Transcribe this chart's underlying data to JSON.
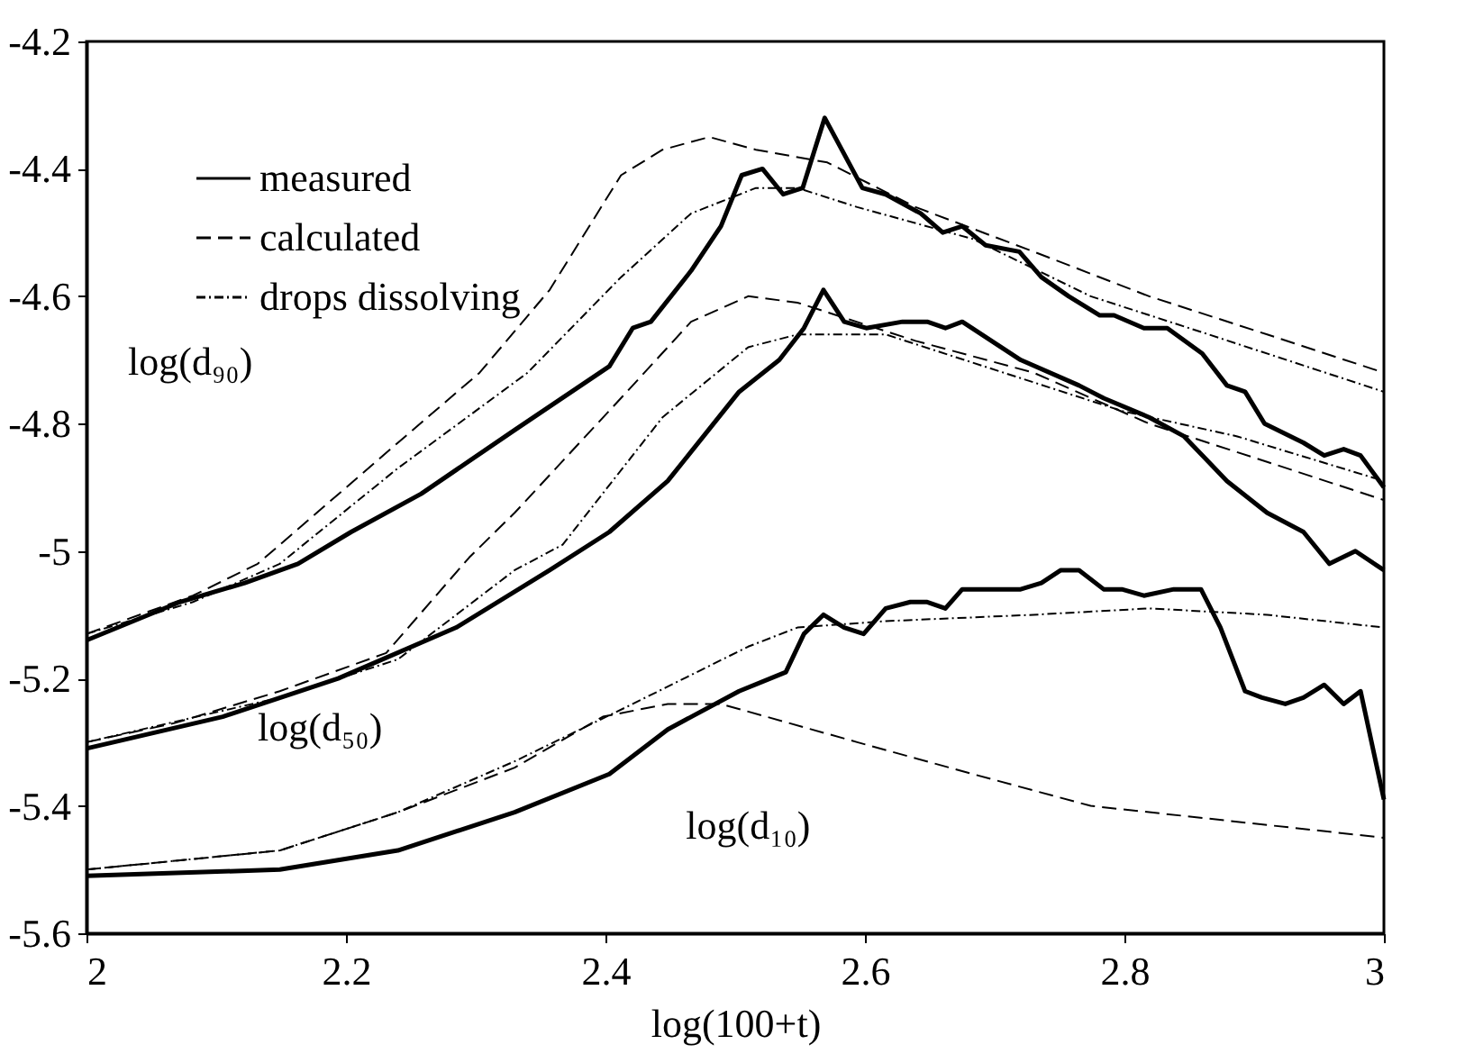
{
  "chart_data": {
    "type": "line",
    "xlabel": "log(100+t)",
    "xlim": [
      2,
      3
    ],
    "ylim": [
      -5.6,
      -4.2
    ],
    "xticks": [
      2,
      2.2,
      2.4,
      2.6,
      2.8,
      3
    ],
    "yticks": [
      -5.6,
      -5.4,
      -5.2,
      -5,
      -4.8,
      -4.6,
      -4.4,
      -4.2
    ],
    "grid": false,
    "legend": "top left",
    "marker": "none",
    "annotations": [
      "log(d₉₀)",
      "log(d₅₀)",
      "log(d₁₀)"
    ],
    "series": [
      {
        "name": "measured",
        "color": "#000000",
        "line_style": "solid",
        "x": [
          2,
          2.072,
          2.122,
          2.163,
          2.204,
          2.258,
          2.33,
          2.403,
          2.421,
          2.435,
          2.466,
          2.489,
          2.505,
          2.521,
          2.537,
          2.552,
          2.569,
          2.598,
          2.616,
          2.643,
          2.66,
          2.675,
          2.693,
          2.719,
          2.736,
          2.757,
          2.781,
          2.792,
          2.815,
          2.833,
          2.86,
          2.879,
          2.893,
          2.908,
          2.938,
          2.954,
          2.969,
          2.982,
          3
        ],
        "values": [
          -5.14,
          -5.08,
          -5.05,
          -5.02,
          -4.97,
          -4.91,
          -4.81,
          -4.71,
          -4.65,
          -4.64,
          -4.56,
          -4.49,
          -4.41,
          -4.4,
          -4.44,
          -4.43,
          -4.32,
          -4.43,
          -4.44,
          -4.47,
          -4.5,
          -4.49,
          -4.52,
          -4.53,
          -4.57,
          -4.6,
          -4.63,
          -4.63,
          -4.65,
          -4.65,
          -4.69,
          -4.74,
          -4.75,
          -4.8,
          -4.83,
          -4.85,
          -4.84,
          -4.85,
          -4.9
        ]
      },
      {
        "name": "calculated",
        "color": "#000000",
        "line_style": "dashed",
        "x": [
          2,
          2.082,
          2.132,
          2.24,
          2.303,
          2.357,
          2.412,
          2.444,
          2.48,
          2.516,
          2.571,
          2.639,
          2.73,
          2.819,
          2.91,
          3
        ],
        "values": [
          -5.13,
          -5.07,
          -5.02,
          -4.83,
          -4.72,
          -4.59,
          -4.41,
          -4.37,
          -4.35,
          -4.37,
          -4.39,
          -4.46,
          -4.53,
          -4.6,
          -4.66,
          -4.72
        ]
      },
      {
        "name": "drops dissolving",
        "color": "#000000",
        "line_style": "dotted",
        "x": [
          2,
          2.082,
          2.149,
          2.24,
          2.34,
          2.412,
          2.466,
          2.516,
          2.548,
          2.594,
          2.683,
          2.774,
          2.865,
          3
        ],
        "values": [
          -5.13,
          -5.08,
          -5.02,
          -4.87,
          -4.72,
          -4.57,
          -4.47,
          -4.43,
          -4.43,
          -4.46,
          -4.51,
          -4.6,
          -4.66,
          -4.75
        ]
      },
      {
        "color": "#000000",
        "line_style": "solid",
        "x": [
          2,
          2.105,
          2.194,
          2.285,
          2.357,
          2.403,
          2.448,
          2.503,
          2.534,
          2.553,
          2.568,
          2.584,
          2.601,
          2.629,
          2.648,
          2.662,
          2.675,
          2.72,
          2.765,
          2.784,
          2.819,
          2.846,
          2.879,
          2.91,
          2.938,
          2.958,
          2.978,
          3
        ],
        "values": [
          -5.31,
          -5.26,
          -5.2,
          -5.12,
          -5.03,
          -4.97,
          -4.89,
          -4.75,
          -4.7,
          -4.65,
          -4.59,
          -4.64,
          -4.65,
          -4.64,
          -4.64,
          -4.65,
          -4.64,
          -4.7,
          -4.74,
          -4.76,
          -4.79,
          -4.82,
          -4.89,
          -4.94,
          -4.97,
          -5.02,
          -5,
          -5.03
        ]
      },
      {
        "color": "#000000",
        "line_style": "dashed",
        "x": [
          2,
          2.068,
          2.149,
          2.231,
          2.295,
          2.33,
          2.421,
          2.466,
          2.51,
          2.548,
          2.639,
          2.73,
          2.819,
          2.91,
          3
        ],
        "values": [
          -5.3,
          -5.27,
          -5.22,
          -5.16,
          -5.01,
          -4.94,
          -4.74,
          -4.64,
          -4.6,
          -4.61,
          -4.67,
          -4.72,
          -4.8,
          -4.86,
          -4.92
        ]
      },
      {
        "color": "#000000",
        "line_style": "dotted",
        "x": [
          2,
          2.149,
          2.24,
          2.33,
          2.367,
          2.444,
          2.51,
          2.548,
          2.616,
          2.707,
          2.798,
          2.887,
          3
        ],
        "values": [
          -5.3,
          -5.23,
          -5.17,
          -5.03,
          -4.99,
          -4.79,
          -4.68,
          -4.66,
          -4.66,
          -4.72,
          -4.78,
          -4.82,
          -4.89
        ]
      },
      {
        "color": "#000000",
        "line_style": "solid",
        "x": [
          2,
          2.149,
          2.24,
          2.33,
          2.403,
          2.448,
          2.503,
          2.539,
          2.553,
          2.568,
          2.584,
          2.599,
          2.616,
          2.635,
          2.648,
          2.662,
          2.675,
          2.72,
          2.736,
          2.751,
          2.765,
          2.784,
          2.798,
          2.815,
          2.838,
          2.859,
          2.874,
          2.893,
          2.906,
          2.924,
          2.938,
          2.954,
          2.969,
          2.982,
          3
        ],
        "values": [
          -5.51,
          -5.5,
          -5.47,
          -5.41,
          -5.35,
          -5.28,
          -5.22,
          -5.19,
          -5.13,
          -5.1,
          -5.12,
          -5.13,
          -5.09,
          -5.08,
          -5.08,
          -5.09,
          -5.06,
          -5.06,
          -5.05,
          -5.03,
          -5.03,
          -5.06,
          -5.06,
          -5.07,
          -5.06,
          -5.06,
          -5.12,
          -5.22,
          -5.23,
          -5.24,
          -5.23,
          -5.21,
          -5.24,
          -5.22,
          -5.39
        ]
      },
      {
        "color": "#000000",
        "line_style": "dashed",
        "x": [
          2,
          2.149,
          2.24,
          2.33,
          2.398,
          2.448,
          2.489,
          2.594,
          2.683,
          2.774,
          2.865,
          2.955,
          3
        ],
        "values": [
          -5.5,
          -5.47,
          -5.41,
          -5.34,
          -5.26,
          -5.24,
          -5.24,
          -5.3,
          -5.35,
          -5.4,
          -5.42,
          -5.44,
          -5.45
        ]
      },
      {
        "color": "#000000",
        "line_style": "dotted",
        "x": [
          2,
          2.149,
          2.24,
          2.33,
          2.421,
          2.51,
          2.548,
          2.616,
          2.73,
          2.819,
          2.91,
          3
        ],
        "values": [
          -5.5,
          -5.47,
          -5.41,
          -5.33,
          -5.24,
          -5.15,
          -5.12,
          -5.11,
          -5.1,
          -5.09,
          -5.1,
          -5.12
        ]
      }
    ]
  }
}
